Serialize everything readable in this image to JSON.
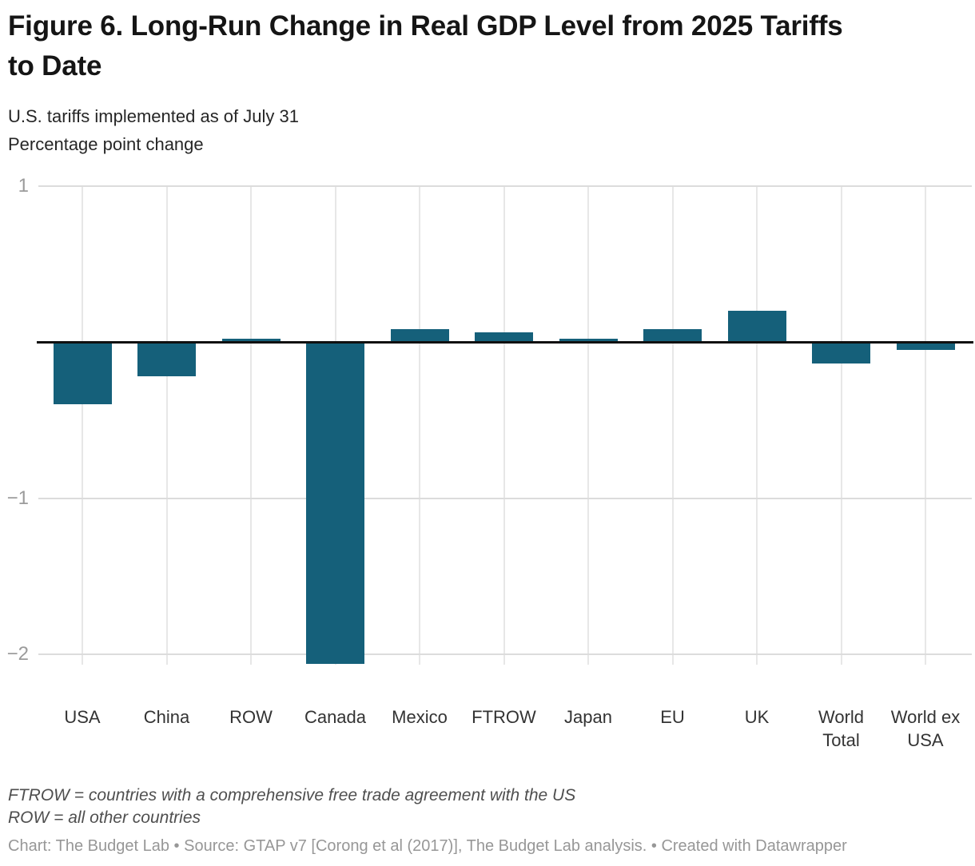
{
  "header": {
    "title": "Figure 6. Long-Run Change in Real GDP Level from 2025 Tariffs to Date",
    "subtitle_line1": "U.S. tariffs implemented as of July 31",
    "subtitle_line2": "Percentage point change"
  },
  "chart_data": {
    "type": "bar",
    "title": "Figure 6. Long-Run Change in Real GDP Level from 2025 Tariffs to Date",
    "subtitle": "U.S. tariffs implemented as of July 31",
    "ylabel": "Percentage point change",
    "xlabel": "",
    "categories": [
      "USA",
      "China",
      "ROW",
      "Canada",
      "Mexico",
      "FTROW",
      "Japan",
      "EU",
      "UK",
      "World Total",
      "World ex USA"
    ],
    "values": [
      -0.4,
      -0.22,
      0.02,
      -2.06,
      0.08,
      0.06,
      0.02,
      0.08,
      0.2,
      -0.14,
      -0.05
    ],
    "ylim": [
      -2.15,
      1
    ],
    "yticks": [
      1,
      -1,
      -2
    ],
    "grid": "on",
    "legend": "none",
    "bar_color": "#15607a",
    "zero_line_color": "#101010",
    "gridline_color": "#dcdcdc"
  },
  "footer": {
    "note_line1": "FTROW = countries with a comprehensive free trade agreement with the US",
    "note_line2": "ROW = all other countries",
    "credit": "Chart: The Budget Lab • Source: GTAP v7 [Corong et al (2017)], The Budget Lab analysis. • Created with Datawrapper"
  }
}
